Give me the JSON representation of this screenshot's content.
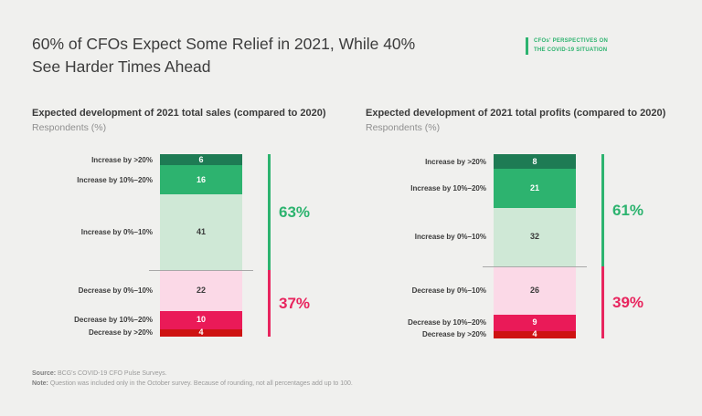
{
  "header": {
    "title_line1": "60% of CFOs Expect Some Relief in 2021, While 40%",
    "title_line2": "See Harder Times Ahead"
  },
  "badge": {
    "line1": "CFOs' PERSPECTIVES ON",
    "line2": "THE COVID-19 SITUATION",
    "accent_color": "#2DB36F"
  },
  "chart_data": [
    {
      "type": "bar",
      "subtype": "single-column-stacked",
      "title": "Expected development of 2021 total sales (compared to 2020)",
      "subtitle": "Respondents (%)",
      "categories": [
        "Increase by >20%",
        "Increase by 10%–20%",
        "Increase by 0%–10%",
        "Decrease by 0%–10%",
        "Decrease by 10%–20%",
        "Decrease by >20%"
      ],
      "values": [
        6,
        16,
        41,
        22,
        10,
        4
      ],
      "colors": [
        "#1E7B54",
        "#2DB36F",
        "#CFE8D6",
        "#FBD9E7",
        "#EA1A58",
        "#CE1312"
      ],
      "value_text_colors": [
        "#FFFFFF",
        "#FFFFFF",
        "#3A3A3A",
        "#3A3A3A",
        "#FFFFFF",
        "#FFFFFF"
      ],
      "increase_count": 3,
      "increase_total_label": "63%",
      "decrease_total_label": "37%",
      "increase_color": "#2DB36F",
      "decrease_color": "#E8255E",
      "legend": "none",
      "grid": false
    },
    {
      "type": "bar",
      "subtype": "single-column-stacked",
      "title": "Expected development of 2021 total profits (compared to 2020)",
      "subtitle": "Respondents (%)",
      "categories": [
        "Increase by >20%",
        "Increase by 10%–20%",
        "Increase by 0%–10%",
        "Decrease by 0%–10%",
        "Decrease by 10%–20%",
        "Decrease by >20%"
      ],
      "values": [
        8,
        21,
        32,
        26,
        9,
        4
      ],
      "colors": [
        "#1E7B54",
        "#2DB36F",
        "#CFE8D6",
        "#FBD9E7",
        "#EA1A58",
        "#CE1312"
      ],
      "value_text_colors": [
        "#FFFFFF",
        "#FFFFFF",
        "#3A3A3A",
        "#3A3A3A",
        "#FFFFFF",
        "#FFFFFF"
      ],
      "increase_count": 3,
      "increase_total_label": "61%",
      "decrease_total_label": "39%",
      "increase_color": "#2DB36F",
      "decrease_color": "#E8255E",
      "legend": "none",
      "grid": false
    }
  ],
  "footer": {
    "source_label": "Source:",
    "source_text": " BCG's COVID-19 CFO Pulse Surveys.",
    "note_label": "Note:",
    "note_text": " Question was included only in the October survey. Because of rounding, not all percentages add up to 100."
  }
}
